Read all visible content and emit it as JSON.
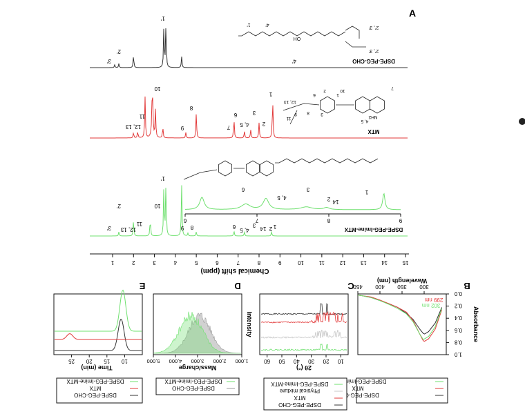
{
  "figure": {
    "panel_labels": {
      "A": "A",
      "B": "B",
      "C": "C",
      "D": "D",
      "E": "E"
    }
  },
  "colors": {
    "black": "#333333",
    "red": "#e23a3a",
    "green": "#6fe06f",
    "gray": "#9a9a9a",
    "lightgray": "#c7c7c7"
  },
  "panel_a": {
    "xlabel": "Chemical shift (ppm)",
    "ticks": [
      "15",
      "14",
      "13",
      "12",
      "11",
      "10",
      "9",
      "8",
      "7",
      "6",
      "5",
      "4",
      "3",
      "2",
      "1"
    ],
    "traces": [
      {
        "name": "DSPE-PEG-CHO",
        "color": "#333333",
        "peak_labels": [
          "1'",
          "2'",
          "3'",
          "4'"
        ]
      },
      {
        "name": "MTX",
        "color": "#e23a3a",
        "peak_labels": [
          "1",
          "2",
          "3",
          "4, 5",
          "6",
          "7",
          "8",
          "9",
          "10",
          "11",
          "12, 13"
        ]
      },
      {
        "name": "DSPE-PEG-Imine-MTX",
        "color": "#6fe06f",
        "peak_labels": [
          "1'",
          "2'",
          "3'",
          "10",
          "11",
          "12, 13",
          "9",
          "8",
          "6",
          "4, 5",
          "3",
          "14",
          "2",
          "1"
        ]
      }
    ],
    "inset": {
      "ticks": [
        "9",
        "8",
        "7",
        "6"
      ],
      "peak_labels": [
        "1",
        "14",
        "2",
        "3",
        "4, 5",
        "6"
      ]
    },
    "struct_labels": {
      "cho": [
        "4'",
        "1'",
        "2', 3'",
        "2', 3'",
        "OH"
      ],
      "mtx": [
        "7",
        "10",
        "12, 13",
        "11",
        "NH2",
        "4, 5",
        "1",
        "2",
        "3",
        "8",
        "9",
        "6"
      ]
    }
  },
  "chart_data": [
    {
      "type": "line",
      "title": "B",
      "xlabel": "Wavelength (nm)",
      "ylabel": "Absorbance",
      "xlim": [
        250,
        450
      ],
      "ylim": [
        0,
        1.0
      ],
      "x_ticks": [
        300,
        350,
        400,
        450
      ],
      "y_ticks": [
        0.0,
        0.2,
        0.4,
        0.6,
        0.8,
        1.0
      ],
      "annotations": [
        "299 nm",
        "302 nm"
      ],
      "x": [
        260,
        275,
        290,
        299,
        302,
        310,
        325,
        340,
        360,
        380,
        400,
        420,
        440,
        450
      ],
      "series": [
        {
          "name": "DSPE-PEG-CHO",
          "values": [
            0.22,
            0.48,
            0.62,
            0.66,
            0.65,
            0.58,
            0.42,
            0.32,
            0.22,
            0.16,
            0.11,
            0.06,
            0.03,
            0.02
          ]
        },
        {
          "name": "MTX",
          "values": [
            0.26,
            0.58,
            0.74,
            0.78,
            0.77,
            0.66,
            0.44,
            0.3,
            0.22,
            0.16,
            0.1,
            0.05,
            0.03,
            0.02
          ]
        },
        {
          "name": "DSPE-PEG-Imine-MTX",
          "values": [
            0.24,
            0.54,
            0.7,
            0.74,
            0.75,
            0.66,
            0.46,
            0.33,
            0.24,
            0.17,
            0.11,
            0.06,
            0.03,
            0.02
          ]
        }
      ],
      "legend": [
        "DSPE-PEG-CHO",
        "MTX",
        "DSPE-PEG-Imine-MTX"
      ]
    },
    {
      "type": "line",
      "title": "C",
      "xlabel": "2θ (°)",
      "x_ticks": [
        10,
        20,
        30,
        40,
        50,
        60
      ],
      "xlim": [
        5,
        65
      ],
      "series": [
        {
          "name": "DSPE-PEG-CHO",
          "offset": 4
        },
        {
          "name": "MTX",
          "offset": 3
        },
        {
          "name": "Physical mixture",
          "offset": 2
        },
        {
          "name": "DSPE-PEG-Imine-MTX",
          "offset": 1
        }
      ],
      "legend": [
        "DSPE-PEG-CHO",
        "MTX",
        "Physical mixture",
        "DSPE-PEG-Imine-MTX"
      ]
    },
    {
      "type": "area",
      "title": "D",
      "xlabel": "Mass/charge",
      "ylabel": "Intensity",
      "x_ticks": [
        1000,
        2000,
        3000,
        4000,
        5000
      ],
      "x_tick_labels": [
        "1,000",
        "2,000",
        "3,000",
        "4,000",
        "5,000"
      ],
      "xlim": [
        1000,
        5000
      ],
      "series": [
        {
          "name": "DSPE-PEG-CHO",
          "center": 2900,
          "width": 700
        },
        {
          "name": "DSPE-PEG-Imine-MTX",
          "center": 3300,
          "width": 750
        }
      ],
      "legend": [
        "DSPE-PEG-CHO",
        "DSPE-PEG-Imine-MTX"
      ]
    },
    {
      "type": "line",
      "title": "E",
      "xlabel": "Time (min)",
      "x_ticks": [
        10,
        15,
        20,
        25
      ],
      "xlim": [
        5,
        30
      ],
      "series": [
        {
          "name": "DSPE-PEG-CHO",
          "peak": 11,
          "height": 0.65
        },
        {
          "name": "MTX",
          "peak": 25.5,
          "height": 0.12
        },
        {
          "name": "DSPE-PEG-Imine-MTX",
          "peak": 10.5,
          "height": 0.85
        }
      ],
      "legend": [
        "DSPE-PEG-CHO",
        "MTX",
        "DSPE-PEG-Imine-MTX"
      ]
    }
  ]
}
